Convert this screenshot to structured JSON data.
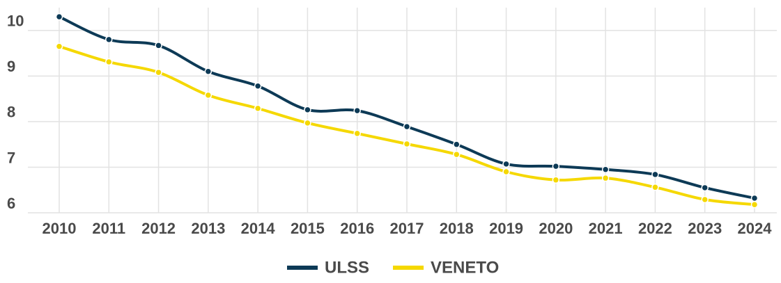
{
  "chart_data": {
    "type": "line",
    "categories": [
      "2010",
      "2011",
      "2012",
      "2013",
      "2014",
      "2015",
      "2016",
      "2017",
      "2018",
      "2019",
      "2020",
      "2021",
      "2022",
      "2023",
      "2024"
    ],
    "series": [
      {
        "name": "ULSS",
        "color": "#0d3a56",
        "values": [
          10.3,
          9.8,
          9.67,
          9.1,
          8.78,
          8.26,
          8.24,
          7.89,
          7.5,
          7.07,
          7.02,
          6.95,
          6.84,
          6.55,
          6.32
        ]
      },
      {
        "name": "VENETO",
        "color": "#f5d800",
        "values": [
          9.65,
          9.31,
          9.08,
          8.58,
          8.29,
          7.97,
          7.74,
          7.51,
          7.28,
          6.9,
          6.72,
          6.76,
          6.56,
          6.29,
          6.18
        ]
      }
    ],
    "ylim": [
      6,
      10.5
    ],
    "yticks": [
      6,
      7,
      8,
      9,
      10
    ],
    "grid": true,
    "legend": "bottom"
  }
}
